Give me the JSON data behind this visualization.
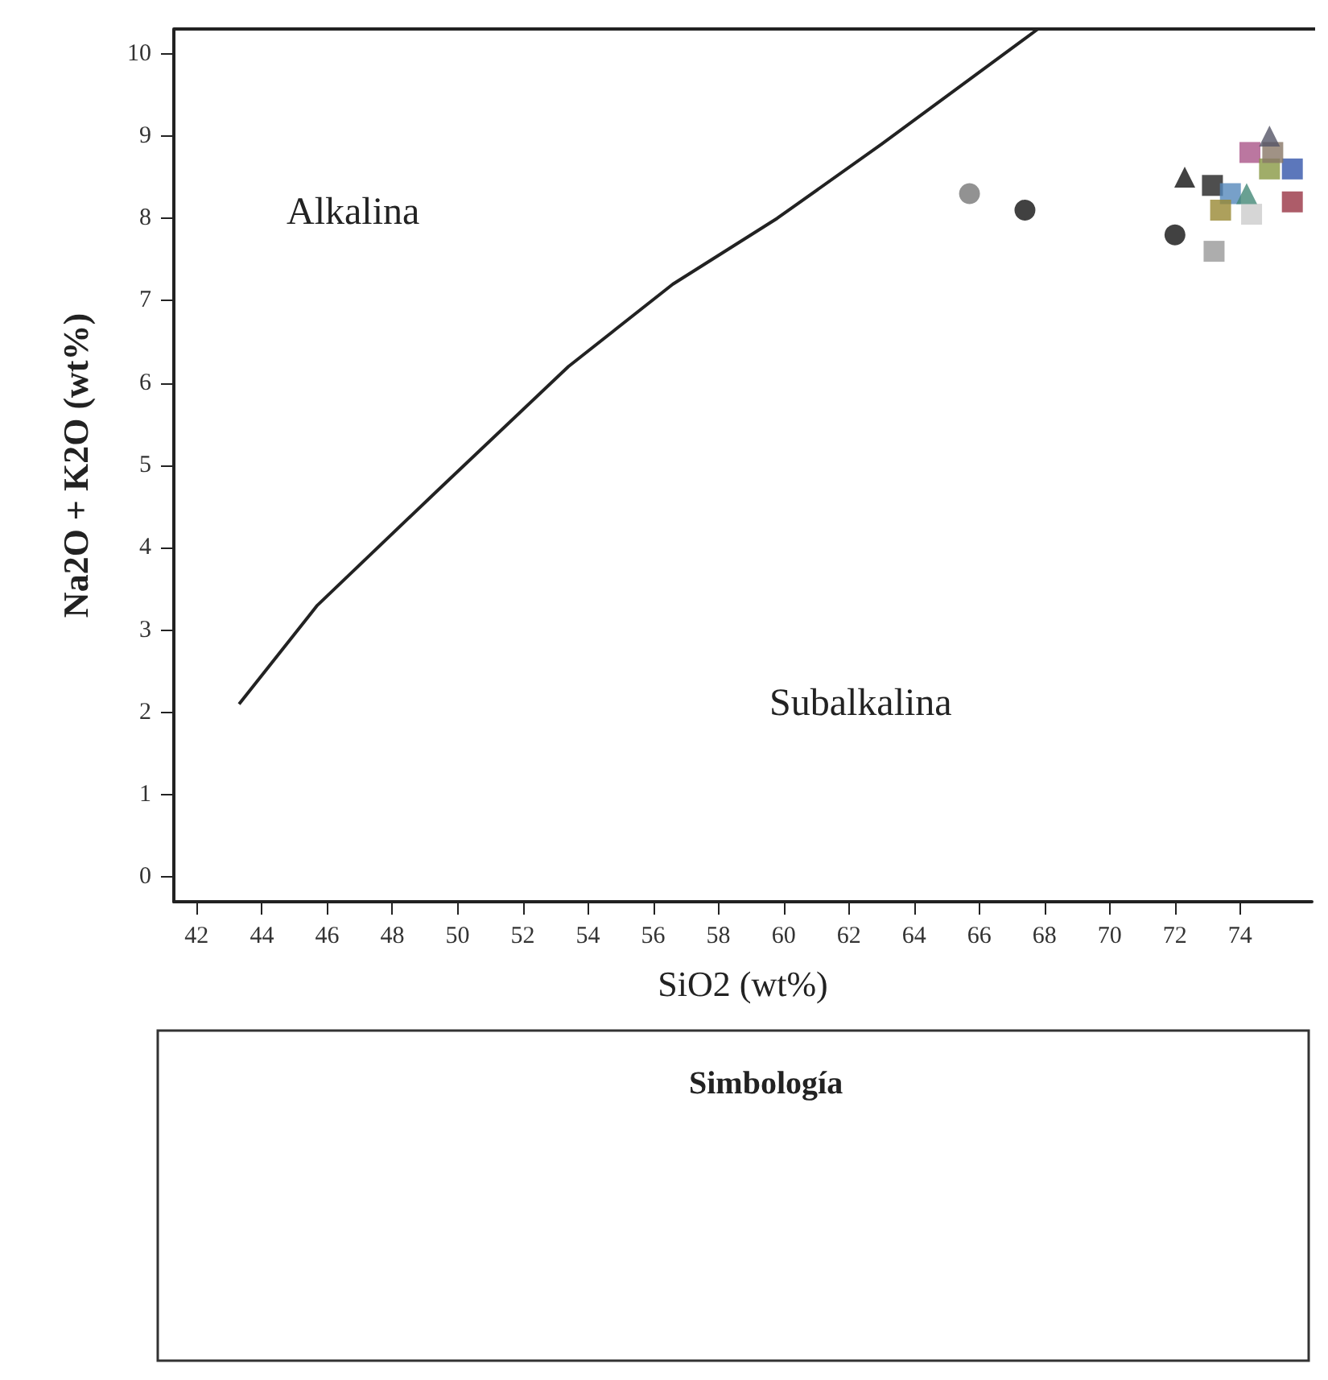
{
  "chart_data": {
    "type": "scatter",
    "xlabel": "SiO2 (wt%)",
    "ylabel": "Na2O + K2O (wt%)",
    "legend_title": "Simbología",
    "xlim": [
      41.3,
      76.2
    ],
    "ylim": [
      -0.3,
      10.3
    ],
    "xticks": [
      42,
      44,
      46,
      48,
      50,
      52,
      54,
      56,
      58,
      60,
      62,
      64,
      66,
      68,
      70,
      72,
      74
    ],
    "yticks": [
      0,
      1,
      2,
      3,
      4,
      5,
      6,
      7,
      8,
      9,
      10
    ],
    "grid": false,
    "annotations": [
      "Alkalina",
      "Subalkalina"
    ],
    "series": [
      {
        "type": "line",
        "color": "#222222",
        "marker": "none",
        "x": [
          43.3,
          45.7,
          49.4,
          53.4,
          56.6,
          59.8,
          63.0,
          67.8
        ],
        "values": [
          2.1,
          3.3,
          4.7,
          6.2,
          7.2,
          8.0,
          8.9,
          10.3
        ]
      },
      {
        "marker": "circle",
        "x": [
          65.7,
          67.4,
          72.0
        ],
        "values": [
          8.3,
          8.1,
          7.8
        ],
        "colors": [
          "#777777",
          "#111111",
          "#111111"
        ]
      },
      {
        "marker": "square",
        "x": [
          73.2,
          73.15,
          73.7,
          73.4,
          74.35,
          74.3,
          74.9,
          75.6,
          75.6,
          75.0
        ],
        "values": [
          7.6,
          8.4,
          8.3,
          8.1,
          8.05,
          8.8,
          8.6,
          8.6,
          8.2,
          8.8
        ],
        "colors": [
          "#999999",
          "#222222",
          "#5588bb",
          "#998833",
          "#cccccc",
          "#aa5588",
          "#889944",
          "#3355aa",
          "#993344",
          "#887766"
        ]
      },
      {
        "marker": "triangle",
        "x": [
          72.3,
          74.2,
          74.9
        ],
        "values": [
          8.5,
          8.3,
          9.0
        ],
        "colors": [
          "#111111",
          "#448877",
          "#555566"
        ]
      }
    ]
  }
}
